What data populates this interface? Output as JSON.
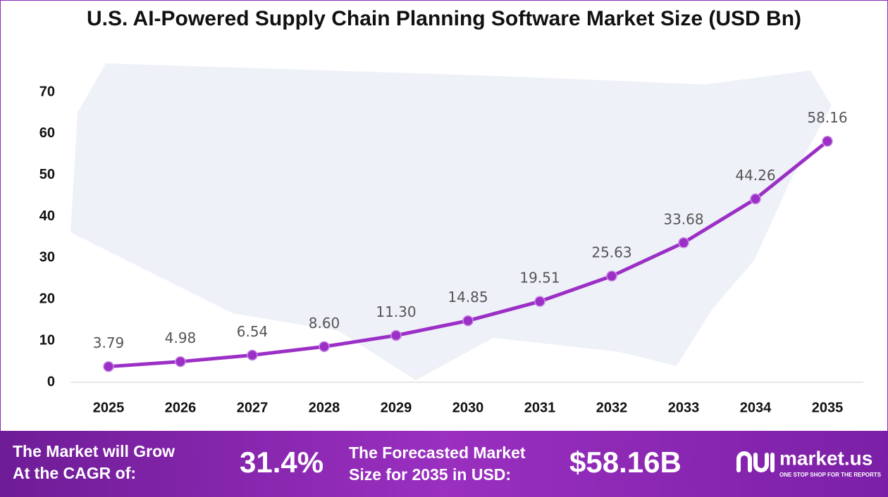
{
  "chart_data": {
    "type": "line",
    "title": "U.S. AI-Powered Supply Chain Planning Software Market Size (USD Bn)",
    "categories": [
      "2025",
      "2026",
      "2027",
      "2028",
      "2029",
      "2030",
      "2031",
      "2032",
      "2033",
      "2034",
      "2035"
    ],
    "values": [
      3.79,
      4.98,
      6.54,
      8.6,
      11.3,
      14.85,
      19.51,
      25.63,
      33.68,
      44.26,
      58.16
    ],
    "value_labels": [
      "3.79",
      "4.98",
      "6.54",
      "8.60",
      "11.30",
      "14.85",
      "19.51",
      "25.63",
      "33.68",
      "44.26",
      "58.16"
    ],
    "color": "#9b2fc6",
    "ylim": [
      0,
      70
    ],
    "yticks": [
      0,
      10,
      20,
      30,
      40,
      50,
      60,
      70
    ],
    "grid": false
  },
  "footer": {
    "cagr_label": [
      "The Market will Grow",
      "At the CAGR of:"
    ],
    "cagr_value": "31.4%",
    "forecast_label": [
      "The Forecasted Market",
      "Size for 2035 in USD:"
    ],
    "forecast_value": "$58.16B",
    "logo": "market.us",
    "tagline": "ONE STOP SHOP FOR THE REPORTS"
  }
}
